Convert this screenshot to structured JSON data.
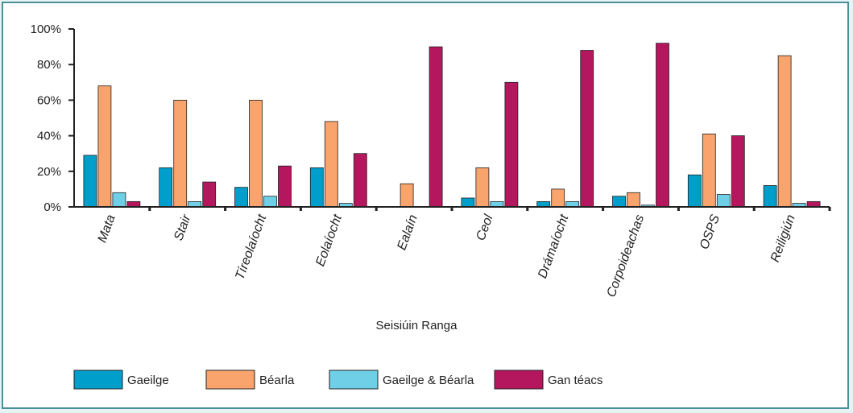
{
  "chart_data": {
    "type": "bar",
    "xlabel": "Seisiúin Ranga",
    "ylabel": "",
    "ylim": [
      0,
      100
    ],
    "yticks": [
      "0%",
      "20%",
      "40%",
      "60%",
      "80%",
      "100%"
    ],
    "grid": false,
    "legend_position": "bottom",
    "categories": [
      "Mata",
      "Stair",
      "Tíreolaíocht",
      "Eolaíocht",
      "Ealaín",
      "Ceol",
      "Drámaíocht",
      "Corpoideachas",
      "OSPS",
      "Reiligiún"
    ],
    "series": [
      {
        "name": "Gaeilge",
        "color": "#009fcb",
        "values": [
          29,
          22,
          11,
          22,
          0,
          5,
          3,
          6,
          18,
          12
        ]
      },
      {
        "name": "Béarla",
        "color": "#f9a36d",
        "values": [
          68,
          60,
          60,
          48,
          13,
          22,
          10,
          8,
          41,
          85
        ]
      },
      {
        "name": "Gaeilge & Béarla",
        "color": "#6ecfe7",
        "values": [
          8,
          3,
          6,
          2,
          0,
          3,
          3,
          1,
          7,
          2
        ]
      },
      {
        "name": "Gan téacs",
        "color": "#b5175f",
        "values": [
          3,
          14,
          23,
          30,
          90,
          70,
          88,
          92,
          40,
          3
        ]
      }
    ]
  }
}
